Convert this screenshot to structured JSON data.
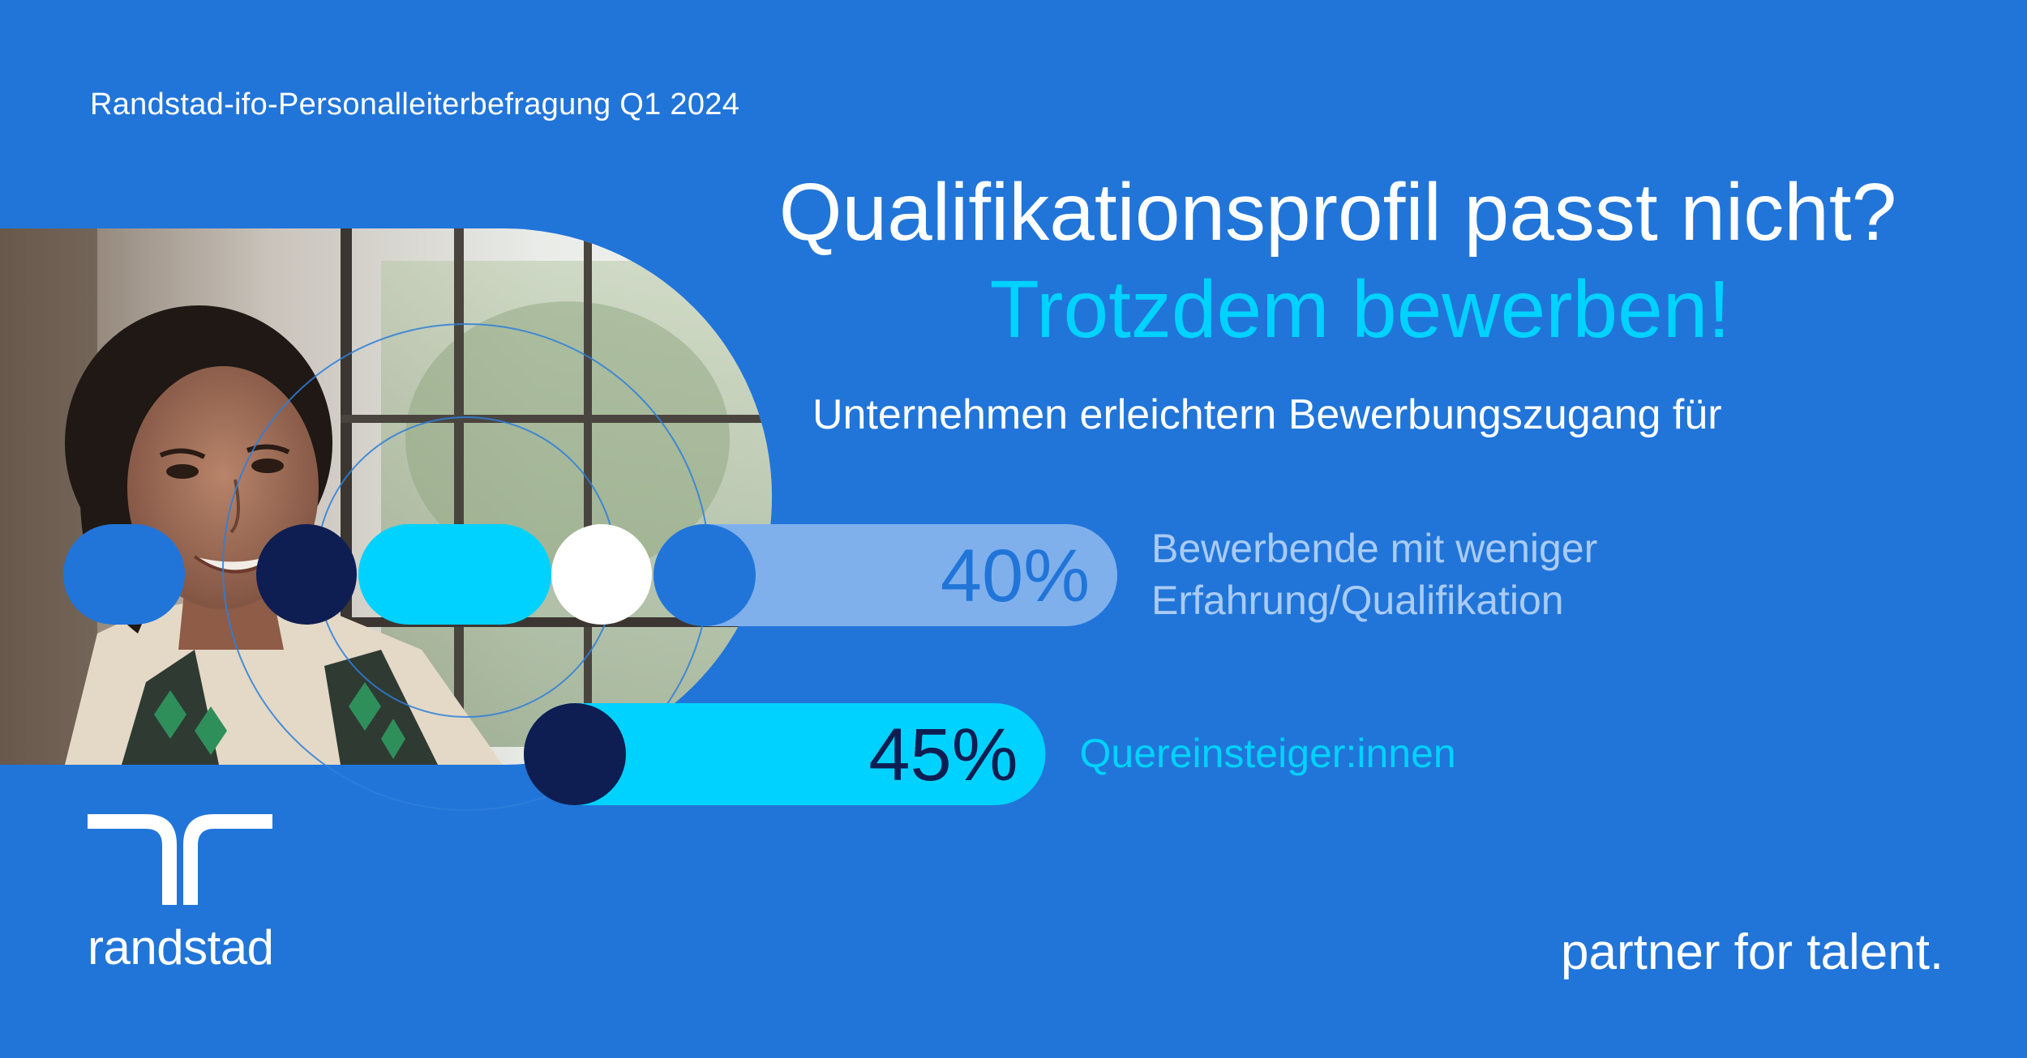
{
  "header": {
    "survey_label": "Randstad-ifo-Personalleiterbefragung Q1 2024"
  },
  "headline": {
    "line1": "Qualifikationsprofil passt nicht?",
    "line2": "Trotzdem bewerben!"
  },
  "subtitle": "Unternehmen erleichtern Bewerbungszugang für",
  "chart_data": {
    "type": "bar",
    "title": "",
    "categories": [
      "Bewerbende mit weniger Erfahrung/Qualifikation",
      "Quereinsteiger:innen"
    ],
    "category_lines": [
      [
        "Bewerbende mit weniger",
        "Erfahrung/Qualifikation"
      ],
      [
        "Quereinsteiger:innen"
      ]
    ],
    "values": [
      40,
      45
    ],
    "value_labels": [
      "40%",
      "45%"
    ],
    "unit": "%",
    "colors": [
      "#7FB0EC",
      "#00D2FF"
    ],
    "value_label_colors": [
      "#2175D9",
      "#0E1E52"
    ],
    "category_label_colors": [
      "#A9CBF4",
      "#00D2FF"
    ],
    "cap_colors": [
      "#2175D9",
      "#0E1E52"
    ],
    "orientation": "horizontal",
    "legend": "none",
    "grid": false
  },
  "brand": {
    "logo_text": "randstad",
    "tagline": "partner for talent.",
    "colors": {
      "background": "#2175D9",
      "cyan": "#00D2FF",
      "navy": "#0E1E52",
      "white": "#FFFFFF"
    }
  }
}
